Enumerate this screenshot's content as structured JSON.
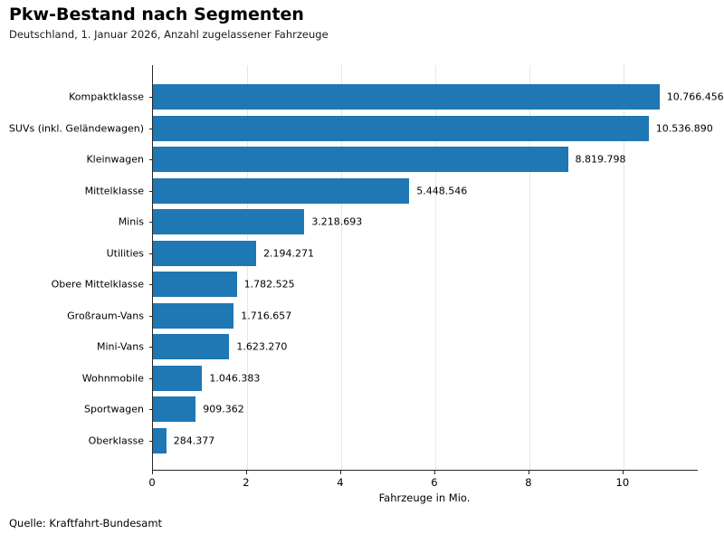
{
  "header": {
    "title": "Pkw-Bestand nach Segmenten",
    "subtitle": "Deutschland, 1. Januar 2026, Anzahl zugelassener Fahrzeuge"
  },
  "footer": {
    "source": "Quelle: Kraftfahrt-Bundesamt"
  },
  "chart_data": {
    "type": "bar",
    "orientation": "horizontal",
    "title": "Pkw-Bestand nach Segmenten",
    "subtitle": "Deutschland, 1. Januar 2026, Anzahl zugelassener Fahrzeuge",
    "categories": [
      "Kompaktklasse",
      "SUVs (inkl. Geländewagen)",
      "Kleinwagen",
      "Mittelklasse",
      "Minis",
      "Utilities",
      "Obere Mittelklasse",
      "Großraum-Vans",
      "Mini-Vans",
      "Wohnmobile",
      "Sportwagen",
      "Oberklasse"
    ],
    "values": [
      10766456,
      10536890,
      8819798,
      5448546,
      3218693,
      2194271,
      1782525,
      1716657,
      1623270,
      1046383,
      909362,
      284377
    ],
    "value_labels": [
      "10.766.456",
      "10.536.890",
      "8.819.798",
      "5.448.546",
      "3.218.693",
      "2.194.271",
      "1.782.525",
      "1.716.657",
      "1.623.270",
      "1.046.383",
      "909.362",
      "284.377"
    ],
    "xlabel": "Fahrzeuge in Mio.",
    "xticks": [
      0,
      2,
      4,
      6,
      8,
      10
    ],
    "xlim": [
      0,
      11.58
    ],
    "unit_divisor": 1000000,
    "grid": true,
    "legend": "none",
    "bar_color": "#1f77b4",
    "grid_color": "#e6e6e6",
    "axis_color": "#262626"
  }
}
